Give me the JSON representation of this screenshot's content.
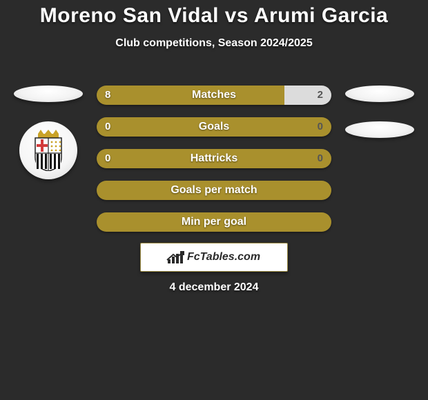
{
  "colors": {
    "background": "#2b2b2b",
    "left_fill": "#a9902d",
    "right_fill": "#dcdcdc",
    "right_text": "#555555",
    "title_text": "#ffffff"
  },
  "title": "Moreno San Vidal vs Arumi Garcia",
  "subtitle": "Club competitions, Season 2024/2025",
  "stats": [
    {
      "label": "Matches",
      "left_value": "8",
      "right_value": "2",
      "left_pct": 80,
      "right_pct": 20
    },
    {
      "label": "Goals",
      "left_value": "0",
      "right_value": "0",
      "left_pct": 100,
      "right_pct": 0
    },
    {
      "label": "Hattricks",
      "left_value": "0",
      "right_value": "0",
      "left_pct": 100,
      "right_pct": 0
    },
    {
      "label": "Goals per match",
      "left_value": "",
      "right_value": "",
      "left_pct": 100,
      "right_pct": 0
    },
    {
      "label": "Min per goal",
      "left_value": "",
      "right_value": "",
      "left_pct": 100,
      "right_pct": 0
    }
  ],
  "badge_text": "FcTables.com",
  "date_text": "4 december 2024",
  "crest": {
    "crown_color": "#c9a227",
    "cross_bg": "#ffffff",
    "cross_color": "#d23b3b",
    "stripes_bg": "#ffffff",
    "stripes_color": "#111111"
  }
}
